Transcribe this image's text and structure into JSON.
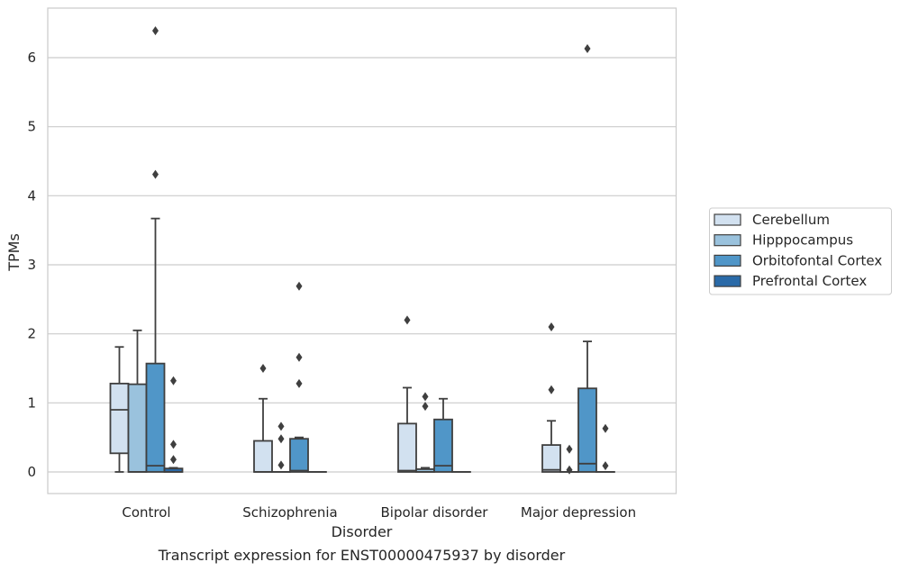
{
  "chart_data": {
    "type": "box",
    "xlabel": "Disorder",
    "ylabel": "TPMs",
    "caption": "Transcript expression for ENST00000475937 by disorder",
    "ylim": [
      -0.3,
      6.75
    ],
    "yticks": [
      0,
      1,
      2,
      3,
      4,
      5,
      6
    ],
    "ytick_labels": [
      "0",
      "1",
      "2",
      "3",
      "4",
      "5",
      "6"
    ],
    "grid": "horizontal",
    "legend_position": "right",
    "categories": [
      "Control",
      "Schizophrenia",
      "Bipolar disorder",
      "Major depression"
    ],
    "series": [
      {
        "name": "Cerebellum",
        "color": "#d2e1f0",
        "boxes": [
          {
            "q1": 0.27,
            "median": 0.9,
            "q3": 1.28,
            "whislo": 0.0,
            "whishi": 1.81,
            "fliers": []
          },
          {
            "q1": 0.0,
            "median": 0.0,
            "q3": 0.45,
            "whislo": 0.0,
            "whishi": 1.06,
            "fliers": [
              1.5
            ]
          },
          {
            "q1": 0.0,
            "median": 0.02,
            "q3": 0.7,
            "whislo": 0.0,
            "whishi": 1.22,
            "fliers": [
              2.2
            ]
          },
          {
            "q1": 0.0,
            "median": 0.03,
            "q3": 0.39,
            "whislo": 0.0,
            "whishi": 0.74,
            "fliers": [
              1.19,
              2.1
            ]
          }
        ]
      },
      {
        "name": "Hipppocampus",
        "color": "#9ac2dd",
        "boxes": [
          {
            "q1": 0.0,
            "median": 0.0,
            "q3": 1.27,
            "whislo": 0.0,
            "whishi": 2.05,
            "fliers": []
          },
          {
            "q1": 0.0,
            "median": 0.0,
            "q3": 0.0,
            "whislo": 0.0,
            "whishi": 0.0,
            "fliers": [
              0.1,
              0.48,
              0.66
            ]
          },
          {
            "q1": 0.0,
            "median": 0.0,
            "q3": 0.04,
            "whislo": 0.0,
            "whishi": 0.06,
            "fliers": [
              0.95,
              1.09
            ]
          },
          {
            "q1": 0.0,
            "median": 0.0,
            "q3": 0.0,
            "whislo": 0.0,
            "whishi": 0.0,
            "fliers": [
              0.03,
              0.33
            ]
          }
        ]
      },
      {
        "name": "Orbitofontal Cortex",
        "color": "#5096c8",
        "boxes": [
          {
            "q1": 0.0,
            "median": 0.09,
            "q3": 1.57,
            "whislo": 0.0,
            "whishi": 3.67,
            "fliers": [
              4.31,
              6.39
            ]
          },
          {
            "q1": 0.0,
            "median": 0.02,
            "q3": 0.48,
            "whislo": 0.0,
            "whishi": 0.5,
            "fliers": [
              1.28,
              1.66,
              2.69
            ]
          },
          {
            "q1": 0.0,
            "median": 0.09,
            "q3": 0.76,
            "whislo": 0.0,
            "whishi": 1.06,
            "fliers": []
          },
          {
            "q1": 0.0,
            "median": 0.12,
            "q3": 1.21,
            "whislo": 0.0,
            "whishi": 1.89,
            "fliers": [
              6.13
            ]
          }
        ]
      },
      {
        "name": "Prefrontal Cortex",
        "color": "#2a6aa8",
        "boxes": [
          {
            "q1": 0.0,
            "median": 0.0,
            "q3": 0.05,
            "whislo": 0.0,
            "whishi": 0.06,
            "fliers": [
              0.18,
              0.4,
              1.32
            ]
          },
          {
            "q1": 0.0,
            "median": 0.0,
            "q3": 0.0,
            "whislo": 0.0,
            "whishi": 0.0,
            "fliers": []
          },
          {
            "q1": 0.0,
            "median": 0.0,
            "q3": 0.0,
            "whislo": 0.0,
            "whishi": 0.0,
            "fliers": []
          },
          {
            "q1": 0.0,
            "median": 0.0,
            "q3": 0.0,
            "whislo": 0.0,
            "whishi": 0.0,
            "fliers": [
              0.09,
              0.63
            ]
          }
        ]
      }
    ]
  }
}
